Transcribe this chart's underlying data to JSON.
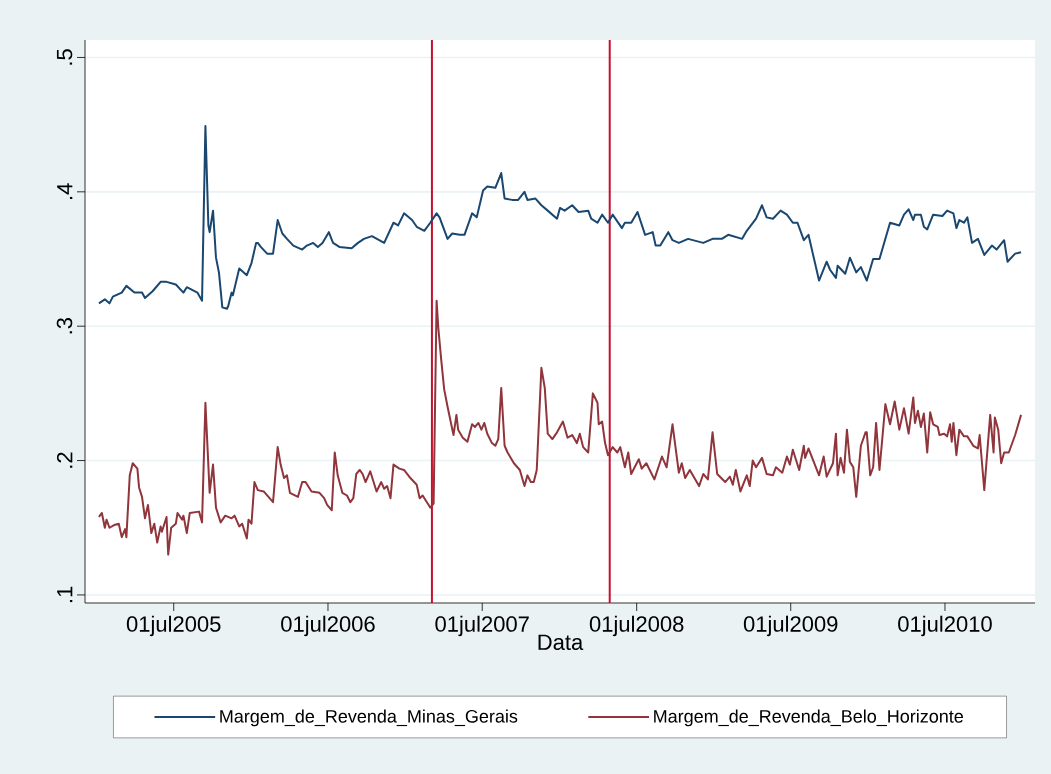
{
  "chart_data": {
    "type": "line",
    "xlabel": "Data",
    "xlim": [
      "2004-12-03",
      "2011-01-30"
    ],
    "ylim": [
      0.094,
      0.513
    ],
    "xticks": [
      {
        "value": "2005-07-01",
        "label": "01jul2005"
      },
      {
        "value": "2006-07-01",
        "label": "01jul2006"
      },
      {
        "value": "2007-07-01",
        "label": "01jul2007"
      },
      {
        "value": "2008-07-01",
        "label": "01jul2008"
      },
      {
        "value": "2009-07-01",
        "label": "01jul2009"
      },
      {
        "value": "2010-07-01",
        "label": "01jul2010"
      }
    ],
    "yticks": [
      {
        "value": 0.1,
        "label": ".1"
      },
      {
        "value": 0.2,
        "label": ".2"
      },
      {
        "value": 0.3,
        "label": ".3"
      },
      {
        "value": 0.4,
        "label": ".4"
      },
      {
        "value": 0.5,
        "label": ".5"
      }
    ],
    "grid": "y",
    "legend": "bottom",
    "ref_lines": [
      {
        "axis": "x",
        "value": "2007-03-04",
        "color": "#c8102e"
      },
      {
        "axis": "x",
        "value": "2008-04-28",
        "color": "#c8102e"
      }
    ],
    "series": [
      {
        "name": "Margem_de_Revenda_Minas_Gerais",
        "color": "#1a476f",
        "x": [
          "2005-01-05",
          "2005-01-19",
          "2005-01-30",
          "2005-02-07",
          "2005-02-28",
          "2005-03-11",
          "2005-03-30",
          "2005-04-17",
          "2005-04-24",
          "2005-05-12",
          "2005-05-31",
          "2005-06-14",
          "2005-07-06",
          "2005-07-24",
          "2005-08-01",
          "2005-08-26",
          "2005-09-06",
          "2005-09-14",
          "2005-09-21",
          "2005-09-24",
          "2005-10-02",
          "2005-10-09",
          "2005-10-16",
          "2005-10-24",
          "2005-11-04",
          "2005-11-07",
          "2005-11-15",
          "2005-11-18",
          "2005-12-03",
          "2005-12-21",
          "2006-01-01",
          "2006-01-12",
          "2006-01-16",
          "2006-01-23",
          "2006-02-07",
          "2006-02-21",
          "2006-03-04",
          "2006-03-15",
          "2006-03-26",
          "2006-04-10",
          "2006-05-01",
          "2006-05-12",
          "2006-05-27",
          "2006-06-07",
          "2006-06-18",
          "2006-07-03",
          "2006-07-13",
          "2006-07-28",
          "2006-08-26",
          "2006-09-10",
          "2006-09-24",
          "2006-10-13",
          "2006-11-11",
          "2006-12-03",
          "2006-12-14",
          "2006-12-28",
          "2007-01-16",
          "2007-01-27",
          "2007-02-14",
          "2007-02-28",
          "2007-03-15",
          "2007-03-22",
          "2007-04-10",
          "2007-04-21",
          "2007-05-09",
          "2007-05-20",
          "2007-06-07",
          "2007-06-18",
          "2007-07-03",
          "2007-07-13",
          "2007-08-01",
          "2007-08-15",
          "2007-08-23",
          "2007-09-10",
          "2007-09-24",
          "2007-10-09",
          "2007-10-16",
          "2007-11-04",
          "2007-11-18",
          "2007-12-03",
          "2007-12-25",
          "2008-01-01",
          "2008-01-12",
          "2008-01-30",
          "2008-02-14",
          "2008-03-08",
          "2008-03-15",
          "2008-03-30",
          "2008-04-10",
          "2008-04-24",
          "2008-05-05",
          "2008-05-27",
          "2008-06-03",
          "2008-06-18",
          "2008-07-03",
          "2008-07-21",
          "2008-08-08",
          "2008-08-15",
          "2008-08-26",
          "2008-09-14",
          "2008-09-24",
          "2008-10-09",
          "2008-10-31",
          "2008-12-06",
          "2008-12-28",
          "2009-01-19",
          "2009-02-03",
          "2009-03-08",
          "2009-03-19",
          "2009-04-10",
          "2009-04-24",
          "2009-05-05",
          "2009-05-20",
          "2009-06-07",
          "2009-06-22",
          "2009-07-06",
          "2009-07-17",
          "2009-08-01",
          "2009-08-12",
          "2009-09-06",
          "2009-09-24",
          "2009-10-02",
          "2009-10-16",
          "2009-10-20",
          "2009-11-07",
          "2009-11-18",
          "2009-12-03",
          "2009-12-14",
          "2009-12-28",
          "2010-01-12",
          "2010-01-27",
          "2010-02-21",
          "2010-03-15",
          "2010-03-26",
          "2010-04-06",
          "2010-04-17",
          "2010-04-21",
          "2010-05-05",
          "2010-05-12",
          "2010-05-20",
          "2010-06-03",
          "2010-06-25",
          "2010-07-06",
          "2010-07-21",
          "2010-07-28",
          "2010-08-04",
          "2010-08-15",
          "2010-08-23",
          "2010-09-03",
          "2010-09-17",
          "2010-10-02",
          "2010-10-20",
          "2010-10-31",
          "2010-11-18",
          "2010-11-26",
          "2010-12-14",
          "2010-12-28"
        ],
        "values": [
          0.317,
          0.32,
          0.317,
          0.322,
          0.325,
          0.33,
          0.325,
          0.325,
          0.321,
          0.326,
          0.333,
          0.333,
          0.331,
          0.325,
          0.329,
          0.325,
          0.319,
          0.449,
          0.375,
          0.37,
          0.386,
          0.351,
          0.34,
          0.314,
          0.313,
          0.315,
          0.325,
          0.323,
          0.343,
          0.338,
          0.347,
          0.362,
          0.362,
          0.359,
          0.354,
          0.354,
          0.379,
          0.369,
          0.365,
          0.36,
          0.357,
          0.36,
          0.362,
          0.359,
          0.362,
          0.37,
          0.362,
          0.359,
          0.358,
          0.362,
          0.365,
          0.367,
          0.362,
          0.377,
          0.375,
          0.384,
          0.379,
          0.374,
          0.371,
          0.377,
          0.384,
          0.381,
          0.365,
          0.369,
          0.368,
          0.368,
          0.384,
          0.381,
          0.401,
          0.404,
          0.403,
          0.414,
          0.395,
          0.394,
          0.394,
          0.4,
          0.394,
          0.395,
          0.39,
          0.386,
          0.38,
          0.388,
          0.386,
          0.39,
          0.385,
          0.386,
          0.38,
          0.377,
          0.383,
          0.377,
          0.383,
          0.373,
          0.377,
          0.377,
          0.385,
          0.368,
          0.37,
          0.36,
          0.36,
          0.37,
          0.364,
          0.362,
          0.365,
          0.362,
          0.365,
          0.365,
          0.368,
          0.365,
          0.371,
          0.38,
          0.39,
          0.381,
          0.38,
          0.386,
          0.383,
          0.377,
          0.377,
          0.364,
          0.368,
          0.334,
          0.348,
          0.342,
          0.336,
          0.345,
          0.339,
          0.351,
          0.34,
          0.344,
          0.334,
          0.35,
          0.35,
          0.377,
          0.375,
          0.383,
          0.387,
          0.379,
          0.383,
          0.383,
          0.374,
          0.372,
          0.383,
          0.382,
          0.386,
          0.384,
          0.373,
          0.379,
          0.377,
          0.381,
          0.362,
          0.365,
          0.353,
          0.36,
          0.357,
          0.364,
          0.348,
          0.354,
          0.355
        ]
      },
      {
        "name": "Margem_de_Revenda_Belo_Horizonte",
        "color": "#90353b",
        "x": [
          "2005-01-05",
          "2005-01-12",
          "2005-01-19",
          "2005-01-23",
          "2005-01-30",
          "2005-02-10",
          "2005-02-21",
          "2005-02-28",
          "2005-03-08",
          "2005-03-11",
          "2005-03-19",
          "2005-03-26",
          "2005-04-06",
          "2005-04-10",
          "2005-04-17",
          "2005-04-24",
          "2005-05-01",
          "2005-05-09",
          "2005-05-16",
          "2005-05-23",
          "2005-05-31",
          "2005-06-03",
          "2005-06-14",
          "2005-06-18",
          "2005-06-25",
          "2005-07-06",
          "2005-07-10",
          "2005-07-21",
          "2005-07-24",
          "2005-08-01",
          "2005-08-08",
          "2005-08-30",
          "2005-09-06",
          "2005-09-14",
          "2005-09-24",
          "2005-10-02",
          "2005-10-09",
          "2005-10-20",
          "2005-10-31",
          "2005-11-15",
          "2005-11-22",
          "2005-12-03",
          "2005-12-10",
          "2005-12-21",
          "2005-12-25",
          "2006-01-01",
          "2006-01-08",
          "2006-01-16",
          "2006-01-30",
          "2006-02-21",
          "2006-03-04",
          "2006-03-11",
          "2006-03-19",
          "2006-03-26",
          "2006-04-02",
          "2006-04-21",
          "2006-05-01",
          "2006-05-09",
          "2006-05-23",
          "2006-06-11",
          "2006-06-22",
          "2006-06-29",
          "2006-07-10",
          "2006-07-17",
          "2006-07-24",
          "2006-08-04",
          "2006-08-15",
          "2006-08-23",
          "2006-08-30",
          "2006-09-06",
          "2006-09-14",
          "2006-09-21",
          "2006-09-28",
          "2006-10-09",
          "2006-10-24",
          "2006-11-04",
          "2006-11-11",
          "2006-11-18",
          "2006-11-26",
          "2006-12-03",
          "2006-12-17",
          "2006-12-28",
          "2007-01-12",
          "2007-01-27",
          "2007-02-03",
          "2007-02-10",
          "2007-02-28",
          "2007-03-08",
          "2007-03-15",
          "2007-03-19",
          "2007-03-26",
          "2007-04-02",
          "2007-04-10",
          "2007-04-24",
          "2007-05-01",
          "2007-05-05",
          "2007-05-16",
          "2007-05-27",
          "2007-06-07",
          "2007-06-14",
          "2007-06-22",
          "2007-06-29",
          "2007-07-06",
          "2007-07-13",
          "2007-07-24",
          "2007-08-01",
          "2007-08-08",
          "2007-08-15",
          "2007-08-23",
          "2007-08-30",
          "2007-09-14",
          "2007-09-28",
          "2007-10-09",
          "2007-10-16",
          "2007-10-24",
          "2007-10-31",
          "2007-11-07",
          "2007-11-18",
          "2007-11-26",
          "2007-12-03",
          "2007-12-14",
          "2007-12-25",
          "2008-01-08",
          "2008-01-19",
          "2008-01-30",
          "2008-02-10",
          "2008-02-17",
          "2008-02-25",
          "2008-03-08",
          "2008-03-19",
          "2008-03-30",
          "2008-04-02",
          "2008-04-10",
          "2008-04-17",
          "2008-04-24",
          "2008-05-05",
          "2008-05-16",
          "2008-05-23",
          "2008-06-03",
          "2008-06-11",
          "2008-06-18",
          "2008-07-06",
          "2008-07-13",
          "2008-07-24",
          "2008-08-12",
          "2008-08-30",
          "2008-09-10",
          "2008-09-24",
          "2008-10-09",
          "2008-10-16",
          "2008-10-24",
          "2008-11-04",
          "2008-11-26",
          "2008-12-06",
          "2008-12-17",
          "2008-12-28",
          "2009-01-08",
          "2009-01-27",
          "2009-02-07",
          "2009-02-14",
          "2009-02-21",
          "2009-03-04",
          "2009-03-19",
          "2009-03-26",
          "2009-04-02",
          "2009-04-10",
          "2009-04-24",
          "2009-05-05",
          "2009-05-20",
          "2009-05-27",
          "2009-06-11",
          "2009-06-22",
          "2009-06-29",
          "2009-07-06",
          "2009-07-21",
          "2009-08-01",
          "2009-08-04",
          "2009-08-12",
          "2009-09-06",
          "2009-09-17",
          "2009-09-24",
          "2009-10-09",
          "2009-10-16",
          "2009-10-20",
          "2009-10-27",
          "2009-11-04",
          "2009-11-11",
          "2009-11-18",
          "2009-11-26",
          "2009-12-03",
          "2009-12-14",
          "2009-12-25",
          "2009-12-28",
          "2010-01-05",
          "2010-01-12",
          "2010-01-19",
          "2010-01-27",
          "2010-02-10",
          "2010-02-21",
          "2010-03-04",
          "2010-03-15",
          "2010-03-26",
          "2010-04-06",
          "2010-04-17",
          "2010-04-21",
          "2010-04-28",
          "2010-05-05",
          "2010-05-12",
          "2010-05-20",
          "2010-05-27",
          "2010-06-03",
          "2010-06-14",
          "2010-06-18",
          "2010-06-29",
          "2010-07-06",
          "2010-07-13",
          "2010-07-17",
          "2010-07-21",
          "2010-07-28",
          "2010-08-04",
          "2010-08-15",
          "2010-08-23",
          "2010-09-06",
          "2010-09-17",
          "2010-09-21",
          "2010-10-02",
          "2010-10-16",
          "2010-10-24",
          "2010-10-27",
          "2010-11-04",
          "2010-11-11",
          "2010-11-18",
          "2010-11-29",
          "2010-12-14",
          "2010-12-28"
        ],
        "values": [
          0.158,
          0.161,
          0.15,
          0.156,
          0.15,
          0.152,
          0.153,
          0.143,
          0.149,
          0.143,
          0.189,
          0.198,
          0.194,
          0.18,
          0.173,
          0.157,
          0.167,
          0.146,
          0.153,
          0.139,
          0.151,
          0.147,
          0.158,
          0.13,
          0.15,
          0.153,
          0.161,
          0.156,
          0.159,
          0.146,
          0.161,
          0.162,
          0.154,
          0.243,
          0.176,
          0.197,
          0.165,
          0.154,
          0.159,
          0.157,
          0.159,
          0.151,
          0.153,
          0.142,
          0.156,
          0.153,
          0.184,
          0.178,
          0.177,
          0.169,
          0.21,
          0.197,
          0.187,
          0.189,
          0.176,
          0.173,
          0.184,
          0.184,
          0.177,
          0.176,
          0.172,
          0.167,
          0.163,
          0.206,
          0.189,
          0.176,
          0.174,
          0.169,
          0.172,
          0.19,
          0.193,
          0.19,
          0.184,
          0.192,
          0.177,
          0.184,
          0.179,
          0.181,
          0.172,
          0.197,
          0.194,
          0.193,
          0.187,
          0.182,
          0.172,
          0.174,
          0.165,
          0.168,
          0.319,
          0.299,
          0.275,
          0.253,
          0.24,
          0.219,
          0.234,
          0.223,
          0.217,
          0.214,
          0.227,
          0.225,
          0.228,
          0.223,
          0.228,
          0.22,
          0.213,
          0.211,
          0.216,
          0.254,
          0.211,
          0.206,
          0.198,
          0.193,
          0.181,
          0.189,
          0.184,
          0.184,
          0.193,
          0.269,
          0.254,
          0.22,
          0.216,
          0.221,
          0.229,
          0.217,
          0.219,
          0.213,
          0.22,
          0.21,
          0.206,
          0.25,
          0.243,
          0.227,
          0.229,
          0.213,
          0.204,
          0.21,
          0.206,
          0.21,
          0.195,
          0.206,
          0.19,
          0.201,
          0.194,
          0.198,
          0.186,
          0.203,
          0.195,
          0.227,
          0.191,
          0.198,
          0.187,
          0.193,
          0.181,
          0.19,
          0.186,
          0.221,
          0.19,
          0.184,
          0.188,
          0.182,
          0.193,
          0.177,
          0.189,
          0.181,
          0.2,
          0.195,
          0.202,
          0.19,
          0.189,
          0.195,
          0.191,
          0.203,
          0.197,
          0.208,
          0.193,
          0.211,
          0.202,
          0.209,
          0.189,
          0.203,
          0.188,
          0.198,
          0.22,
          0.189,
          0.202,
          0.191,
          0.223,
          0.199,
          0.195,
          0.173,
          0.211,
          0.221,
          0.221,
          0.189,
          0.195,
          0.228,
          0.193,
          0.242,
          0.227,
          0.244,
          0.223,
          0.239,
          0.22,
          0.247,
          0.228,
          0.237,
          0.225,
          0.235,
          0.206,
          0.236,
          0.227,
          0.225,
          0.219,
          0.22,
          0.218,
          0.227,
          0.214,
          0.228,
          0.204,
          0.223,
          0.218,
          0.218,
          0.211,
          0.209,
          0.219,
          0.178,
          0.234,
          0.206,
          0.232,
          0.223,
          0.198,
          0.206,
          0.206,
          0.219,
          0.234
        ]
      }
    ]
  }
}
